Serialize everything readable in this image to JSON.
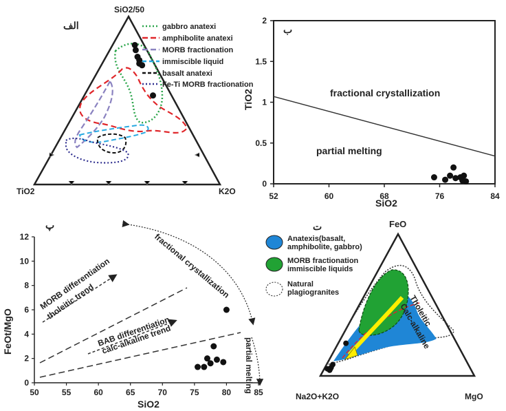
{
  "chart_data": [
    {
      "panel": "الف",
      "type": "scatter",
      "apex_labels": {
        "top": "SiO2/50",
        "left": "TiO2",
        "right": "K2O"
      },
      "legend": [
        {
          "label": "gabbro anatexi",
          "color": "#2aa54a",
          "style": "dotted"
        },
        {
          "label": "amphibolite anatexi",
          "color": "#e0262a",
          "style": "dashed"
        },
        {
          "label": "MORB fractionation",
          "color": "#8a82c0",
          "style": "dashed"
        },
        {
          "label": "immiscible liquid",
          "color": "#27a9e1",
          "style": "dashed"
        },
        {
          "label": "basalt anatexi",
          "color": "#111111",
          "style": "dashed"
        },
        {
          "label": "Fe-Ti MORB fractionation",
          "color": "#2f2f8f",
          "style": "dotted"
        }
      ],
      "points_ternary": [
        {
          "top": 0.83,
          "left": 0.05,
          "right": 0.12
        },
        {
          "top": 0.8,
          "left": 0.06,
          "right": 0.14
        },
        {
          "top": 0.76,
          "left": 0.07,
          "right": 0.17
        },
        {
          "top": 0.74,
          "left": 0.07,
          "right": 0.19
        },
        {
          "top": 0.72,
          "left": 0.08,
          "right": 0.2
        },
        {
          "top": 0.71,
          "left": 0.07,
          "right": 0.22
        },
        {
          "top": 0.53,
          "left": 0.1,
          "right": 0.37
        }
      ]
    },
    {
      "panel": "ب",
      "type": "scatter",
      "xlabel": "SiO2",
      "ylabel": "TiO2",
      "xlim": [
        52,
        84
      ],
      "ylim": [
        0,
        2
      ],
      "xticks": [
        "52",
        "60",
        "68",
        "76",
        "84"
      ],
      "yticks": [
        "0",
        "0.5",
        "1",
        "1.5",
        "2"
      ],
      "annotations": [
        "fractional crystallization",
        "partial melting"
      ],
      "boundary_line": {
        "x": [
          52,
          84
        ],
        "y": [
          1.07,
          0.34
        ]
      },
      "x": [
        75.2,
        76.8,
        77.5,
        78.0,
        78.3,
        79.0,
        79.5,
        79.8,
        79.3
      ],
      "y": [
        0.08,
        0.05,
        0.1,
        0.2,
        0.07,
        0.08,
        0.1,
        0.03,
        0.04
      ]
    },
    {
      "panel": "پ",
      "type": "scatter",
      "xlabel": "SiO2",
      "ylabel": "FeOt/MgO",
      "xlim": [
        50,
        85
      ],
      "ylim": [
        0,
        12
      ],
      "xticks": [
        "50",
        "55",
        "60",
        "65",
        "70",
        "75",
        "80",
        "85"
      ],
      "yticks": [
        "0",
        "2",
        "4",
        "6",
        "8",
        "10",
        "12"
      ],
      "annotations": [
        "fractional crystallization",
        "MORB differentiation",
        "tholeitic trend",
        "BAB differentiation",
        "calc-alkaline trend",
        "partial melting"
      ],
      "x": [
        80.0,
        78.0,
        77.0,
        78.5,
        79.5,
        77.5,
        76.5,
        75.5
      ],
      "y": [
        6.0,
        3.0,
        2.0,
        1.9,
        1.7,
        1.6,
        1.3,
        1.3
      ]
    },
    {
      "panel": "ت",
      "type": "scatter",
      "apex_labels": {
        "top": "FeO",
        "left": "Na2O+K2O",
        "right": "MgO"
      },
      "legend": [
        {
          "label": "Anatexis(basalt,",
          "label2": "amphibolite, gabbro)",
          "color": "#1f86d6"
        },
        {
          "label": "MORB fractionation",
          "label2": "immiscible liquids",
          "color": "#21a234"
        },
        {
          "label": "Natural",
          "label2": "plagiogranites",
          "color": "#ffffff"
        }
      ],
      "trend_labels": [
        "Tholeitic",
        "Calc-alkaline"
      ],
      "points_ternary": [
        {
          "top": 0.23,
          "left": 0.72,
          "right": 0.05
        },
        {
          "top": 0.08,
          "left": 0.88,
          "right": 0.04
        },
        {
          "top": 0.06,
          "left": 0.9,
          "right": 0.04
        },
        {
          "top": 0.05,
          "left": 0.91,
          "right": 0.04
        },
        {
          "top": 0.04,
          "left": 0.92,
          "right": 0.04
        },
        {
          "top": 0.05,
          "left": 0.93,
          "right": 0.02
        }
      ]
    }
  ]
}
